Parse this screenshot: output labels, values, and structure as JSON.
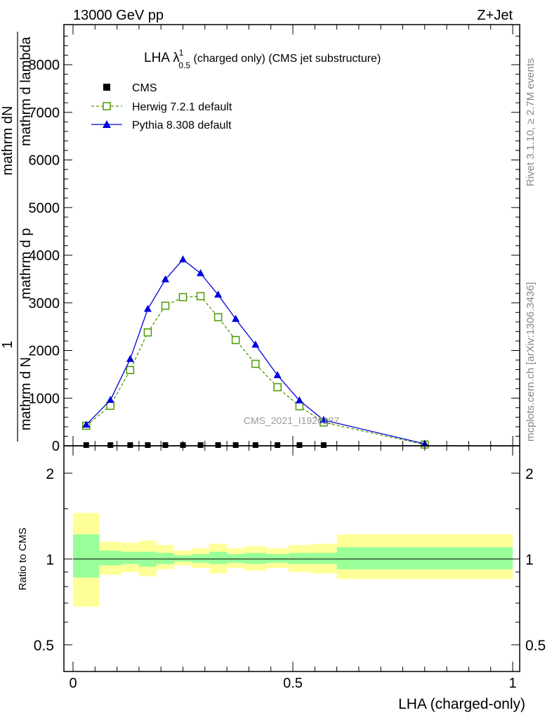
{
  "header": {
    "left": "13000 GeV pp",
    "right": "Z+Jet"
  },
  "side_labels": {
    "rivet": "Rivet 3.1.10, ≥ 2.7M events",
    "mcplots": "mcplots.cern.ch [arXiv:1306.3436]"
  },
  "chart_data": [
    {
      "type": "line",
      "title_main": "LHA λ",
      "title_sup": "1",
      "title_sub": "0.5",
      "title_rest": " (charged only) (CMS jet substructure)",
      "ylabel_numerator": "mathrm dN",
      "ylabel_denominator_1": "mathrm d p",
      "ylabel_denominator_2": "mathrm d lambda",
      "ylabel_prefactor_num": "1",
      "ylabel_prefactor_den": "mathrm d N",
      "ylabel_full": "1 / mathrm d N / mathrm d p mathrm d lambda",
      "watermark": "CMS_2021_I1920187",
      "xlim": [
        0,
        1
      ],
      "ylim": [
        0,
        8800
      ],
      "yticks": [
        0,
        1000,
        2000,
        3000,
        4000,
        5000,
        6000,
        7000,
        8000
      ],
      "ytick_labels": [
        "0",
        "1000",
        "2000",
        "3000",
        "4000",
        "5000",
        "6000",
        "7000",
        "8000"
      ],
      "legend_position": "top-left",
      "series": [
        {
          "name": "CMS",
          "color": "#000000",
          "marker": "square-filled",
          "x": [
            0.03,
            0.085,
            0.13,
            0.17,
            0.21,
            0.25,
            0.29,
            0.33,
            0.37,
            0.415,
            0.465,
            0.515,
            0.57
          ],
          "y": [
            0,
            0,
            0,
            0,
            0,
            0,
            0,
            0,
            0,
            0,
            0,
            0,
            0
          ]
        },
        {
          "name": "Herwig 7.2.1 default",
          "color": "#4a9a00",
          "marker": "square-open",
          "dashed": true,
          "x": [
            0.03,
            0.085,
            0.13,
            0.17,
            0.21,
            0.25,
            0.29,
            0.33,
            0.37,
            0.415,
            0.465,
            0.515,
            0.57,
            0.8
          ],
          "y": [
            420,
            840,
            1590,
            2380,
            2940,
            3120,
            3140,
            2700,
            2220,
            1720,
            1230,
            830,
            490,
            25
          ]
        },
        {
          "name": "Pythia 8.308 default",
          "color": "#0000dd",
          "marker": "triangle-filled",
          "dashed": false,
          "x": [
            0.03,
            0.085,
            0.13,
            0.17,
            0.21,
            0.25,
            0.29,
            0.33,
            0.37,
            0.415,
            0.465,
            0.515,
            0.57,
            0.8
          ],
          "y": [
            440,
            960,
            1820,
            2870,
            3490,
            3910,
            3620,
            3170,
            2660,
            2120,
            1480,
            950,
            540,
            40
          ]
        }
      ]
    },
    {
      "type": "area",
      "ylabel": "Ratio to CMS",
      "xlabel": "LHA (charged-only)",
      "xlim": [
        -0.02,
        1.02
      ],
      "ylim": [
        0.35,
        2.3
      ],
      "log_y": true,
      "yticks": [
        0.5,
        1,
        2
      ],
      "ytick_labels": [
        "0.5",
        "1",
        "2"
      ],
      "xticks": [
        0,
        0.5,
        1
      ],
      "xtick_labels": [
        "0",
        "0.5",
        "1"
      ],
      "band_colors": {
        "inner": "#99ff99",
        "outer": "#ffff99"
      },
      "bins": [
        {
          "x0": 0.0,
          "x1": 0.06,
          "lo_in": 0.86,
          "hi_in": 1.22,
          "lo_out": 0.68,
          "hi_out": 1.45
        },
        {
          "x0": 0.06,
          "x1": 0.11,
          "lo_in": 0.95,
          "hi_in": 1.07,
          "lo_out": 0.88,
          "hi_out": 1.15
        },
        {
          "x0": 0.11,
          "x1": 0.15,
          "lo_in": 0.96,
          "hi_in": 1.06,
          "lo_out": 0.9,
          "hi_out": 1.14
        },
        {
          "x0": 0.15,
          "x1": 0.19,
          "lo_in": 0.94,
          "hi_in": 1.06,
          "lo_out": 0.87,
          "hi_out": 1.16
        },
        {
          "x0": 0.19,
          "x1": 0.23,
          "lo_in": 0.96,
          "hi_in": 1.05,
          "lo_out": 0.92,
          "hi_out": 1.12
        },
        {
          "x0": 0.23,
          "x1": 0.27,
          "lo_in": 0.98,
          "hi_in": 1.03,
          "lo_out": 0.95,
          "hi_out": 1.07
        },
        {
          "x0": 0.27,
          "x1": 0.31,
          "lo_in": 0.97,
          "hi_in": 1.04,
          "lo_out": 0.93,
          "hi_out": 1.09
        },
        {
          "x0": 0.31,
          "x1": 0.35,
          "lo_in": 0.96,
          "hi_in": 1.06,
          "lo_out": 0.89,
          "hi_out": 1.13
        },
        {
          "x0": 0.35,
          "x1": 0.39,
          "lo_in": 0.97,
          "hi_in": 1.04,
          "lo_out": 0.93,
          "hi_out": 1.09
        },
        {
          "x0": 0.39,
          "x1": 0.44,
          "lo_in": 0.96,
          "hi_in": 1.05,
          "lo_out": 0.91,
          "hi_out": 1.11
        },
        {
          "x0": 0.44,
          "x1": 0.49,
          "lo_in": 0.97,
          "hi_in": 1.04,
          "lo_out": 0.93,
          "hi_out": 1.09
        },
        {
          "x0": 0.49,
          "x1": 0.54,
          "lo_in": 0.96,
          "hi_in": 1.05,
          "lo_out": 0.9,
          "hi_out": 1.12
        },
        {
          "x0": 0.54,
          "x1": 0.6,
          "lo_in": 0.96,
          "hi_in": 1.05,
          "lo_out": 0.89,
          "hi_out": 1.13
        },
        {
          "x0": 0.6,
          "x1": 1.0,
          "lo_in": 0.92,
          "hi_in": 1.1,
          "lo_out": 0.85,
          "hi_out": 1.22
        }
      ]
    }
  ]
}
